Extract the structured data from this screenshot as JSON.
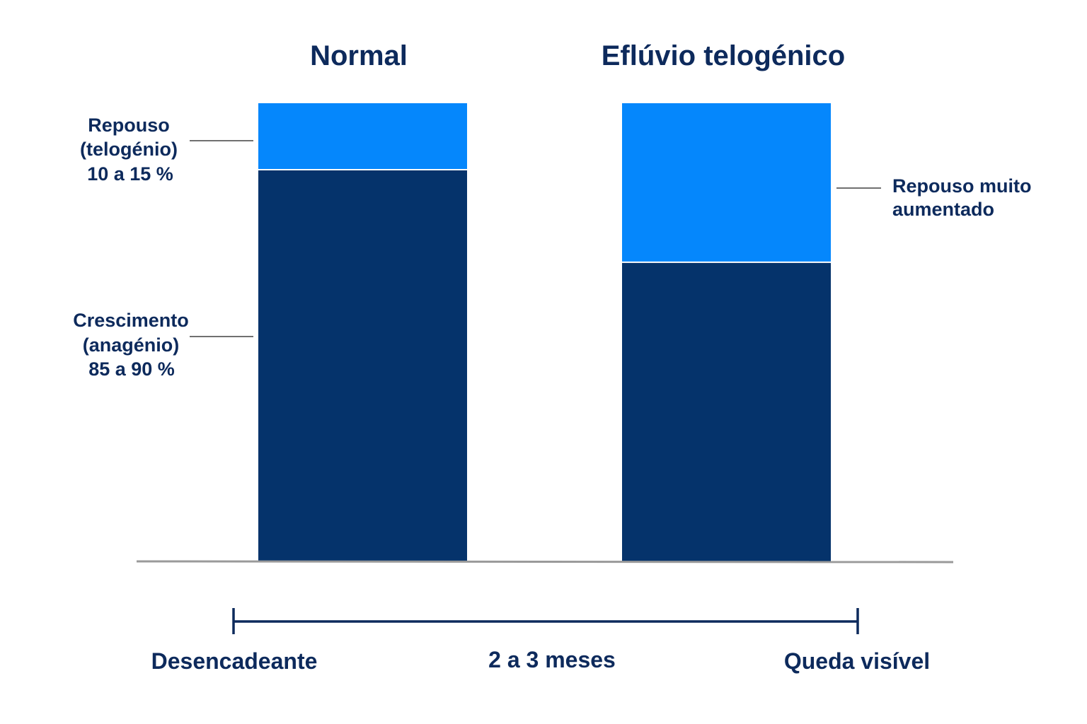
{
  "colors": {
    "growth": "#05336b",
    "rest": "#0587fc",
    "text": "#0d2a5c",
    "leader": "#707070",
    "baseline": "#9a9a9a",
    "timeline": "#0d2a5c"
  },
  "chart_data": {
    "type": "bar",
    "stacked": true,
    "categories": [
      "Normal",
      "Eflúvio telogénico"
    ],
    "series": [
      {
        "name": "Crescimento (anagénio)",
        "values": [
          85.5,
          65.3
        ]
      },
      {
        "name": "Repouso (telogénio)",
        "values": [
          14.5,
          34.7
        ]
      }
    ],
    "ylim": [
      0,
      100
    ],
    "annotations": {
      "rest_normal": [
        "Repouso",
        "(telogénio)",
        "10 a 15 %"
      ],
      "growth_normal": [
        "Crescimento",
        "(anagénio)",
        "85 a 90 %"
      ],
      "rest_effluvium": [
        "Repouso muito",
        "aumentado"
      ]
    }
  },
  "timeline": {
    "start": "Desencadeante",
    "middle": "2 a 3 meses",
    "end": "Queda visível"
  }
}
